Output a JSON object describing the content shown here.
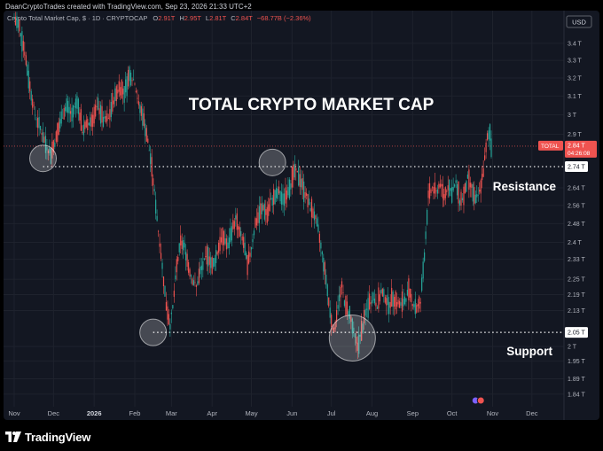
{
  "credit": "DaanCryptoTrades created with TradingView.com, Sep 23, 2026 21:33 UTC+2",
  "legend": {
    "symbol": "Crypto Total Market Cap, $ · 1D · CRYPTOCAP",
    "o_label": "O",
    "o": "2.91T",
    "h_label": "H",
    "h": "2.95T",
    "l_label": "L",
    "l": "2.81T",
    "c_label": "C",
    "c": "2.84T",
    "chg": "−68.77B (−2.36%)"
  },
  "currency": "USD",
  "footer_brand": "TradingView",
  "colors": {
    "up": "#26a69a",
    "down": "#ef5350",
    "background": "#131722",
    "grid": "#1e222d",
    "text": "#b2b5be"
  },
  "chart_data": {
    "type": "candlestick",
    "title": "TOTAL CRYPTO MARKET CAP",
    "y_scale": "log",
    "ylim": [
      1.8,
      3.6
    ],
    "y_ticks": [
      "3.4 T",
      "3.3 T",
      "3.2 T",
      "3.1 T",
      "3 T",
      "2.9 T",
      "2.74 T",
      "2.64 T",
      "2.56 T",
      "2.48 T",
      "2.4 T",
      "2.33 T",
      "2.25 T",
      "2.19 T",
      "2.13 T",
      "2.05 T",
      "2 T",
      "1.95 T",
      "1.89 T",
      "1.84 T"
    ],
    "y_tick_values": [
      3.4,
      3.3,
      3.2,
      3.1,
      3.0,
      2.9,
      2.74,
      2.64,
      2.56,
      2.48,
      2.4,
      2.33,
      2.25,
      2.19,
      2.13,
      2.05,
      2.0,
      1.95,
      1.89,
      1.84
    ],
    "x_ticks": [
      "Nov",
      "Dec",
      "2026",
      "Feb",
      "Mar",
      "Apr",
      "May",
      "Jun",
      "Jul",
      "Aug",
      "Sep",
      "Oct",
      "Nov",
      "Dec"
    ],
    "x_tick_days": [
      0,
      30,
      61,
      92,
      120,
      151,
      181,
      212,
      242,
      273,
      304,
      334,
      365,
      395
    ],
    "x_range_days": [
      0,
      410
    ],
    "price_series": [
      [
        0,
        3.55
      ],
      [
        4,
        3.5
      ],
      [
        8,
        3.35
      ],
      [
        12,
        3.15
      ],
      [
        16,
        3.0
      ],
      [
        20,
        2.93
      ],
      [
        24,
        2.85
      ],
      [
        28,
        2.8
      ],
      [
        32,
        2.88
      ],
      [
        36,
        2.98
      ],
      [
        40,
        3.05
      ],
      [
        44,
        3.0
      ],
      [
        48,
        3.08
      ],
      [
        52,
        2.92
      ],
      [
        56,
        2.95
      ],
      [
        60,
        2.98
      ],
      [
        64,
        3.05
      ],
      [
        68,
        2.97
      ],
      [
        72,
        2.98
      ],
      [
        76,
        3.08
      ],
      [
        80,
        3.15
      ],
      [
        84,
        3.12
      ],
      [
        88,
        3.22
      ],
      [
        92,
        3.18
      ],
      [
        95,
        3.05
      ],
      [
        98,
        3.0
      ],
      [
        101,
        2.9
      ],
      [
        104,
        2.78
      ],
      [
        107,
        2.62
      ],
      [
        110,
        2.45
      ],
      [
        113,
        2.3
      ],
      [
        116,
        2.15
      ],
      [
        119,
        2.08
      ],
      [
        121,
        2.14
      ],
      [
        124,
        2.3
      ],
      [
        127,
        2.4
      ],
      [
        130,
        2.38
      ],
      [
        133,
        2.3
      ],
      [
        136,
        2.25
      ],
      [
        139,
        2.22
      ],
      [
        142,
        2.28
      ],
      [
        145,
        2.32
      ],
      [
        148,
        2.35
      ],
      [
        151,
        2.3
      ],
      [
        154,
        2.34
      ],
      [
        157,
        2.4
      ],
      [
        160,
        2.42
      ],
      [
        163,
        2.38
      ],
      [
        166,
        2.45
      ],
      [
        169,
        2.5
      ],
      [
        172,
        2.44
      ],
      [
        175,
        2.4
      ],
      [
        178,
        2.3
      ],
      [
        181,
        2.38
      ],
      [
        184,
        2.48
      ],
      [
        187,
        2.52
      ],
      [
        190,
        2.55
      ],
      [
        193,
        2.52
      ],
      [
        196,
        2.58
      ],
      [
        199,
        2.6
      ],
      [
        202,
        2.62
      ],
      [
        205,
        2.58
      ],
      [
        208,
        2.62
      ],
      [
        211,
        2.66
      ],
      [
        214,
        2.72
      ],
      [
        217,
        2.7
      ],
      [
        220,
        2.65
      ],
      [
        223,
        2.6
      ],
      [
        226,
        2.55
      ],
      [
        229,
        2.52
      ],
      [
        232,
        2.45
      ],
      [
        235,
        2.35
      ],
      [
        238,
        2.25
      ],
      [
        241,
        2.12
      ],
      [
        244,
        2.05
      ],
      [
        247,
        2.15
      ],
      [
        250,
        2.22
      ],
      [
        253,
        2.14
      ],
      [
        256,
        2.12
      ],
      [
        259,
        2.05
      ],
      [
        262,
        2.0
      ],
      [
        265,
        2.05
      ],
      [
        268,
        2.12
      ],
      [
        271,
        2.16
      ],
      [
        274,
        2.18
      ],
      [
        277,
        2.15
      ],
      [
        280,
        2.2
      ],
      [
        283,
        2.18
      ],
      [
        286,
        2.15
      ],
      [
        289,
        2.18
      ],
      [
        292,
        2.16
      ],
      [
        295,
        2.15
      ],
      [
        298,
        2.17
      ],
      [
        301,
        2.2
      ],
      [
        304,
        2.16
      ],
      [
        307,
        2.14
      ],
      [
        310,
        2.16
      ],
      [
        313,
        2.35
      ],
      [
        316,
        2.6
      ],
      [
        319,
        2.64
      ],
      [
        322,
        2.62
      ],
      [
        325,
        2.66
      ],
      [
        328,
        2.6
      ],
      [
        331,
        2.65
      ],
      [
        334,
        2.62
      ],
      [
        337,
        2.66
      ],
      [
        340,
        2.58
      ],
      [
        343,
        2.6
      ],
      [
        346,
        2.68
      ],
      [
        349,
        2.64
      ],
      [
        352,
        2.58
      ],
      [
        355,
        2.62
      ],
      [
        358,
        2.72
      ],
      [
        361,
        2.88
      ],
      [
        363,
        2.91
      ],
      [
        364,
        2.84
      ]
    ],
    "last_price": {
      "label": "TOTAL",
      "value": "2.84 T",
      "countdown": "04:26:08"
    },
    "resistance": {
      "value": 2.74,
      "tag": "2.74 T",
      "label": "Resistance"
    },
    "support": {
      "value": 2.05,
      "tag": "2.05 T",
      "label": "Support"
    },
    "circles": [
      {
        "day": 22,
        "value": 2.78
      },
      {
        "day": 197,
        "value": 2.76
      },
      {
        "day": 106,
        "value": 2.05
      },
      {
        "day": 258,
        "value": 2.03
      }
    ],
    "event_markers_day": 354
  }
}
